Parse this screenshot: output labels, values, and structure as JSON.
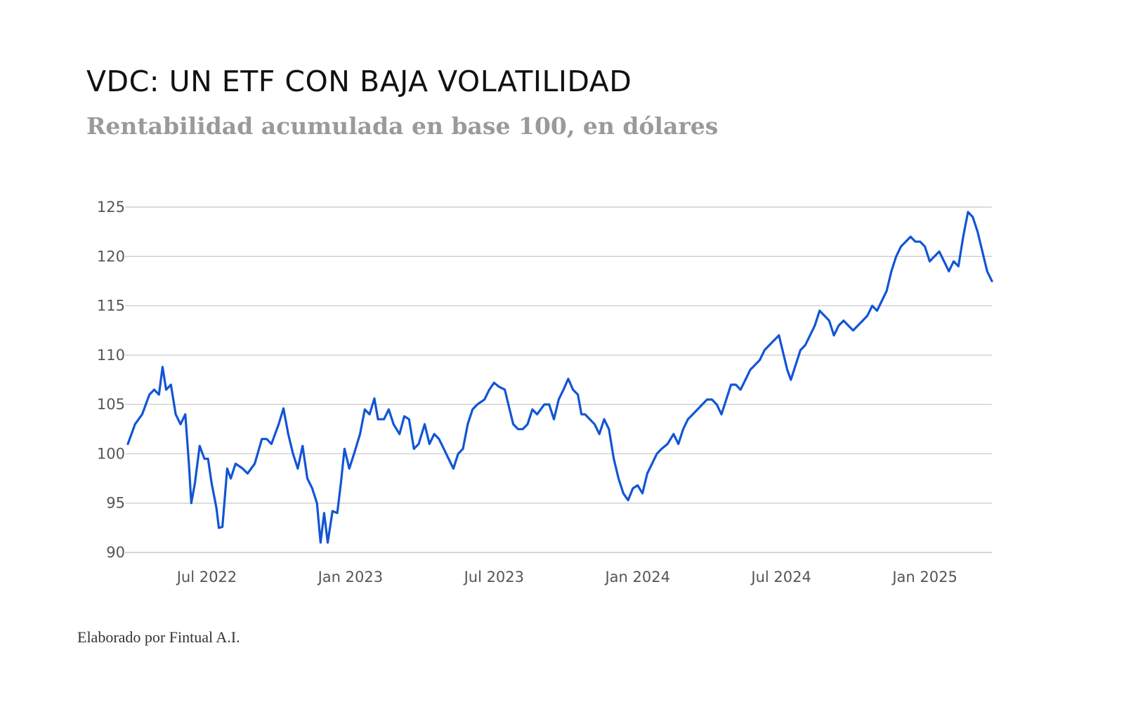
{
  "title": "VDC: UN ETF CON BAJA VOLATILIDAD",
  "subtitle": "Rentabilidad acumulada en base 100, en dólares",
  "footer": "Elaborado por Fintual A.I.",
  "colors": {
    "line": "#1155d4",
    "grid": "#c8c8c8",
    "tick_text": "#555555"
  },
  "chart_data": {
    "type": "line",
    "title": "VDC: UN ETF CON BAJA VOLATILIDAD",
    "subtitle": "Rentabilidad acumulada en base 100, en dólares",
    "xlabel": "",
    "ylabel": "",
    "ylim": [
      90,
      125
    ],
    "xlim_months": [
      0,
      36.1
    ],
    "y_ticks": [
      90,
      95,
      100,
      105,
      110,
      115,
      120,
      125
    ],
    "y_tick_labels": [
      "90",
      "95",
      "100",
      "105",
      "110",
      "115",
      "120",
      "125"
    ],
    "x_ticks": [
      {
        "label": "Jul 2022",
        "month": 3.3
      },
      {
        "label": "Jan 2023",
        "month": 9.3
      },
      {
        "label": "Jul 2023",
        "month": 15.3
      },
      {
        "label": "Jan 2024",
        "month": 21.3
      },
      {
        "label": "Jul 2024",
        "month": 27.3
      },
      {
        "label": "Jan 2025",
        "month": 33.3
      }
    ],
    "grid": true,
    "series": [
      {
        "name": "VDC",
        "x_unit": "months since start (Apr 2022)",
        "points": [
          [
            0.0,
            101.0
          ],
          [
            0.3,
            103.0
          ],
          [
            0.6,
            104.0
          ],
          [
            0.9,
            106.0
          ],
          [
            1.1,
            106.5
          ],
          [
            1.3,
            106.0
          ],
          [
            1.45,
            108.8
          ],
          [
            1.6,
            106.5
          ],
          [
            1.8,
            107.0
          ],
          [
            2.0,
            104.0
          ],
          [
            2.2,
            103.0
          ],
          [
            2.4,
            104.0
          ],
          [
            2.55,
            99.0
          ],
          [
            2.65,
            95.0
          ],
          [
            2.8,
            97.0
          ],
          [
            3.0,
            100.8
          ],
          [
            3.2,
            99.5
          ],
          [
            3.35,
            99.5
          ],
          [
            3.5,
            97.0
          ],
          [
            3.7,
            94.5
          ],
          [
            3.8,
            92.5
          ],
          [
            3.95,
            92.6
          ],
          [
            4.15,
            98.5
          ],
          [
            4.3,
            97.5
          ],
          [
            4.5,
            99.0
          ],
          [
            4.8,
            98.5
          ],
          [
            5.0,
            98.0
          ],
          [
            5.3,
            99.0
          ],
          [
            5.6,
            101.5
          ],
          [
            5.8,
            101.5
          ],
          [
            6.0,
            101.0
          ],
          [
            6.3,
            103.0
          ],
          [
            6.5,
            104.6
          ],
          [
            6.7,
            102.0
          ],
          [
            6.9,
            100.0
          ],
          [
            7.1,
            98.5
          ],
          [
            7.3,
            100.8
          ],
          [
            7.5,
            97.5
          ],
          [
            7.7,
            96.5
          ],
          [
            7.9,
            95.0
          ],
          [
            8.05,
            91.0
          ],
          [
            8.2,
            94.0
          ],
          [
            8.35,
            91.0
          ],
          [
            8.55,
            94.2
          ],
          [
            8.75,
            94.0
          ],
          [
            8.9,
            97.0
          ],
          [
            9.05,
            100.5
          ],
          [
            9.25,
            98.5
          ],
          [
            9.45,
            100.0
          ],
          [
            9.7,
            102.0
          ],
          [
            9.9,
            104.5
          ],
          [
            10.1,
            104.0
          ],
          [
            10.3,
            105.6
          ],
          [
            10.45,
            103.5
          ],
          [
            10.7,
            103.5
          ],
          [
            10.9,
            104.5
          ],
          [
            11.1,
            103.0
          ],
          [
            11.35,
            102.0
          ],
          [
            11.55,
            103.8
          ],
          [
            11.75,
            103.5
          ],
          [
            11.95,
            100.5
          ],
          [
            12.15,
            101.0
          ],
          [
            12.4,
            103.0
          ],
          [
            12.6,
            101.0
          ],
          [
            12.8,
            102.0
          ],
          [
            13.0,
            101.5
          ],
          [
            13.2,
            100.5
          ],
          [
            13.4,
            99.5
          ],
          [
            13.6,
            98.5
          ],
          [
            13.8,
            100.0
          ],
          [
            14.0,
            100.5
          ],
          [
            14.2,
            103.0
          ],
          [
            14.4,
            104.5
          ],
          [
            14.6,
            105.0
          ],
          [
            14.9,
            105.5
          ],
          [
            15.1,
            106.5
          ],
          [
            15.3,
            107.2
          ],
          [
            15.5,
            106.8
          ],
          [
            15.75,
            106.5
          ],
          [
            15.95,
            104.5
          ],
          [
            16.1,
            103.0
          ],
          [
            16.3,
            102.5
          ],
          [
            16.5,
            102.5
          ],
          [
            16.7,
            103.0
          ],
          [
            16.9,
            104.5
          ],
          [
            17.1,
            104.0
          ],
          [
            17.4,
            105.0
          ],
          [
            17.6,
            105.0
          ],
          [
            17.8,
            103.5
          ],
          [
            18.0,
            105.5
          ],
          [
            18.2,
            106.5
          ],
          [
            18.4,
            107.6
          ],
          [
            18.6,
            106.5
          ],
          [
            18.8,
            106.0
          ],
          [
            18.95,
            104.0
          ],
          [
            19.1,
            104.0
          ],
          [
            19.3,
            103.5
          ],
          [
            19.5,
            103.0
          ],
          [
            19.7,
            102.0
          ],
          [
            19.9,
            103.5
          ],
          [
            20.1,
            102.5
          ],
          [
            20.3,
            99.5
          ],
          [
            20.5,
            97.5
          ],
          [
            20.7,
            96.0
          ],
          [
            20.9,
            95.3
          ],
          [
            21.1,
            96.5
          ],
          [
            21.3,
            96.8
          ],
          [
            21.5,
            96.0
          ],
          [
            21.7,
            98.0
          ],
          [
            21.9,
            99.0
          ],
          [
            22.1,
            100.0
          ],
          [
            22.3,
            100.5
          ],
          [
            22.55,
            101.0
          ],
          [
            22.8,
            102.0
          ],
          [
            23.0,
            101.0
          ],
          [
            23.2,
            102.5
          ],
          [
            23.4,
            103.5
          ],
          [
            23.6,
            104.0
          ],
          [
            23.8,
            104.5
          ],
          [
            24.0,
            105.0
          ],
          [
            24.2,
            105.5
          ],
          [
            24.4,
            105.5
          ],
          [
            24.6,
            105.0
          ],
          [
            24.8,
            104.0
          ],
          [
            25.0,
            105.5
          ],
          [
            25.2,
            107.0
          ],
          [
            25.4,
            107.0
          ],
          [
            25.6,
            106.5
          ],
          [
            25.8,
            107.5
          ],
          [
            26.0,
            108.5
          ],
          [
            26.2,
            109.0
          ],
          [
            26.4,
            109.5
          ],
          [
            26.6,
            110.5
          ],
          [
            26.8,
            111.0
          ],
          [
            27.0,
            111.5
          ],
          [
            27.2,
            112.0
          ],
          [
            27.4,
            110.0
          ],
          [
            27.55,
            108.5
          ],
          [
            27.7,
            107.5
          ],
          [
            27.9,
            109.0
          ],
          [
            28.1,
            110.5
          ],
          [
            28.3,
            111.0
          ],
          [
            28.5,
            112.0
          ],
          [
            28.7,
            113.0
          ],
          [
            28.9,
            114.5
          ],
          [
            29.1,
            114.0
          ],
          [
            29.3,
            113.5
          ],
          [
            29.5,
            112.0
          ],
          [
            29.7,
            113.0
          ],
          [
            29.9,
            113.5
          ],
          [
            30.1,
            113.0
          ],
          [
            30.3,
            112.5
          ],
          [
            30.5,
            113.0
          ],
          [
            30.7,
            113.5
          ],
          [
            30.9,
            114.0
          ],
          [
            31.1,
            115.0
          ],
          [
            31.3,
            114.5
          ],
          [
            31.5,
            115.5
          ],
          [
            31.7,
            116.5
          ],
          [
            31.9,
            118.5
          ],
          [
            32.1,
            120.0
          ],
          [
            32.3,
            121.0
          ],
          [
            32.5,
            121.5
          ],
          [
            32.7,
            122.0
          ],
          [
            32.9,
            121.5
          ],
          [
            33.1,
            121.5
          ],
          [
            33.3,
            121.0
          ],
          [
            33.5,
            119.5
          ],
          [
            33.7,
            120.0
          ],
          [
            33.9,
            120.5
          ],
          [
            34.1,
            119.5
          ],
          [
            34.3,
            118.5
          ],
          [
            34.5,
            119.5
          ],
          [
            34.7,
            119.0
          ],
          [
            34.9,
            122.0
          ],
          [
            35.1,
            124.5
          ],
          [
            35.3,
            124.0
          ],
          [
            35.5,
            122.5
          ],
          [
            35.7,
            120.5
          ],
          [
            35.9,
            118.5
          ],
          [
            36.1,
            117.5
          ]
        ]
      }
    ]
  }
}
